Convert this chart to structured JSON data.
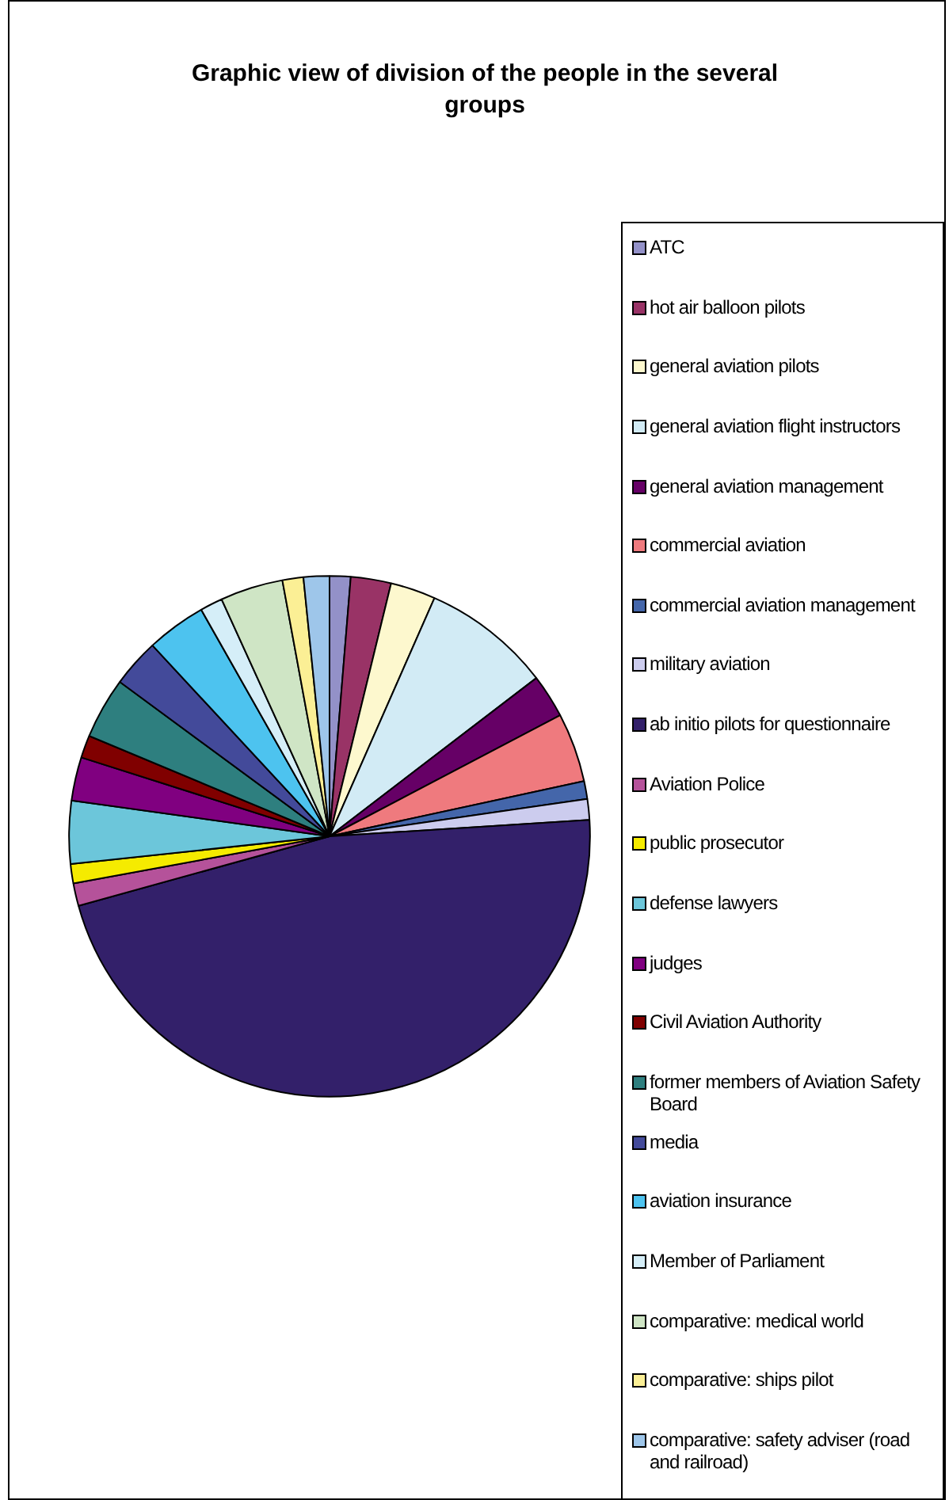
{
  "chart_data": {
    "type": "pie",
    "title": "Graphic view of division of the people in the several groups",
    "categories": [
      "ATC",
      "hot air balloon pilots",
      "general aviation pilots",
      "general aviation flight instructors",
      "general aviation management",
      "commercial aviation",
      "commercial aviation management",
      "military aviation",
      "ab initio pilots for questionnaire",
      "Aviation Police",
      "public prosecutor",
      "defense lawyers",
      "judges",
      "Civil Aviation Authority",
      "former members of Aviation Safety Board",
      "media",
      "aviation insurance",
      "Member of Parliament",
      "comparative: medical world",
      "comparative: ships pilot",
      "comparative: safety adviser (road and railroad)"
    ],
    "values": [
      1.3,
      2.5,
      2.8,
      8.0,
      2.7,
      4.3,
      1.1,
      1.3,
      46.7,
      1.4,
      1.2,
      3.9,
      2.7,
      1.4,
      3.8,
      3.0,
      3.7,
      1.4,
      3.9,
      1.3,
      1.6
    ],
    "colors": [
      "#9391c8",
      "#993366",
      "#fdf8ce",
      "#d2ebf5",
      "#660066",
      "#ef7a7e",
      "#4466aa",
      "#ccccee",
      "#33206a",
      "#b5529a",
      "#f5eb00",
      "#6cc6da",
      "#800080",
      "#800000",
      "#2e7f7f",
      "#434a9a",
      "#4dc3ef",
      "#d5eef8",
      "#cfe5c5",
      "#fbef95",
      "#9ec6ea"
    ],
    "legend": "right"
  }
}
